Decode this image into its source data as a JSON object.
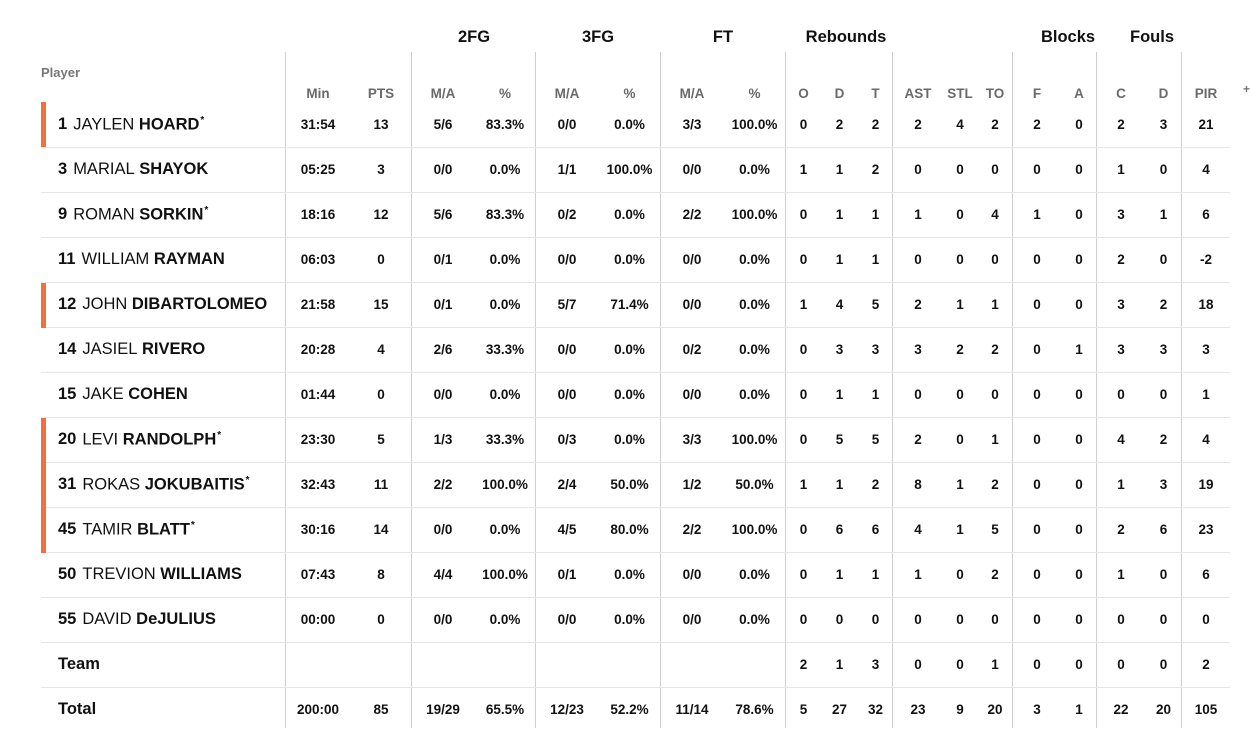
{
  "column_groups": [
    {
      "label": "2FG",
      "center": 474
    },
    {
      "label": "3FG",
      "center": 598
    },
    {
      "label": "FT",
      "center": 723
    },
    {
      "label": "Rebounds",
      "center": 846
    },
    {
      "label": "Blocks",
      "center": 1068
    },
    {
      "label": "Fouls",
      "center": 1152
    }
  ],
  "player_header": "Player",
  "more_indicator": "+",
  "columns": [
    "Min",
    "PTS",
    "M/A",
    "%",
    "M/A",
    "%",
    "M/A",
    "%",
    "O",
    "D",
    "T",
    "AST",
    "STL",
    "TO",
    "F",
    "A",
    "C",
    "D",
    "PIR"
  ],
  "rows": [
    {
      "number": "1",
      "first": "JAYLEN",
      "last": "HOARD",
      "starter": true,
      "stats": [
        "31:54",
        "13",
        "5/6",
        "83.3%",
        "0/0",
        "0.0%",
        "3/3",
        "100.0%",
        "0",
        "2",
        "2",
        "2",
        "4",
        "2",
        "2",
        "0",
        "2",
        "3",
        "21"
      ]
    },
    {
      "number": "3",
      "first": "MARIAL",
      "last": "SHAYOK",
      "starter": false,
      "stats": [
        "05:25",
        "3",
        "0/0",
        "0.0%",
        "1/1",
        "100.0%",
        "0/0",
        "0.0%",
        "1",
        "1",
        "2",
        "0",
        "0",
        "0",
        "0",
        "0",
        "1",
        "0",
        "4"
      ]
    },
    {
      "number": "9",
      "first": "ROMAN",
      "last": "SORKIN",
      "starter": false,
      "star": true,
      "stats": [
        "18:16",
        "12",
        "5/6",
        "83.3%",
        "0/2",
        "0.0%",
        "2/2",
        "100.0%",
        "0",
        "1",
        "1",
        "1",
        "0",
        "4",
        "1",
        "0",
        "3",
        "1",
        "6"
      ]
    },
    {
      "number": "11",
      "first": "WILLIAM",
      "last": "RAYMAN",
      "starter": false,
      "stats": [
        "06:03",
        "0",
        "0/1",
        "0.0%",
        "0/0",
        "0.0%",
        "0/0",
        "0.0%",
        "0",
        "1",
        "1",
        "0",
        "0",
        "0",
        "0",
        "0",
        "2",
        "0",
        "-2"
      ]
    },
    {
      "number": "12",
      "first": "JOHN",
      "last": "DIBARTOLOMEO",
      "starter": true,
      "nostar": true,
      "stats": [
        "21:58",
        "15",
        "0/1",
        "0.0%",
        "5/7",
        "71.4%",
        "0/0",
        "0.0%",
        "1",
        "4",
        "5",
        "2",
        "1",
        "1",
        "0",
        "0",
        "3",
        "2",
        "18"
      ]
    },
    {
      "number": "14",
      "first": "JASIEL",
      "last": "RIVERO",
      "starter": false,
      "stats": [
        "20:28",
        "4",
        "2/6",
        "33.3%",
        "0/0",
        "0.0%",
        "0/2",
        "0.0%",
        "0",
        "3",
        "3",
        "3",
        "2",
        "2",
        "0",
        "1",
        "3",
        "3",
        "3"
      ]
    },
    {
      "number": "15",
      "first": "JAKE",
      "last": "COHEN",
      "starter": false,
      "stats": [
        "01:44",
        "0",
        "0/0",
        "0.0%",
        "0/0",
        "0.0%",
        "0/0",
        "0.0%",
        "0",
        "1",
        "1",
        "0",
        "0",
        "0",
        "0",
        "0",
        "0",
        "0",
        "1"
      ]
    },
    {
      "number": "20",
      "first": "LEVI",
      "last": "RANDOLPH",
      "starter": true,
      "stats": [
        "23:30",
        "5",
        "1/3",
        "33.3%",
        "0/3",
        "0.0%",
        "3/3",
        "100.0%",
        "0",
        "5",
        "5",
        "2",
        "0",
        "1",
        "0",
        "0",
        "4",
        "2",
        "4"
      ]
    },
    {
      "number": "31",
      "first": "ROKAS",
      "last": "JOKUBAITIS",
      "starter": true,
      "stats": [
        "32:43",
        "11",
        "2/2",
        "100.0%",
        "2/4",
        "50.0%",
        "1/2",
        "50.0%",
        "1",
        "1",
        "2",
        "8",
        "1",
        "2",
        "0",
        "0",
        "1",
        "3",
        "19"
      ]
    },
    {
      "number": "45",
      "first": "TAMIR",
      "last": "BLATT",
      "starter": true,
      "stats": [
        "30:16",
        "14",
        "0/0",
        "0.0%",
        "4/5",
        "80.0%",
        "2/2",
        "100.0%",
        "0",
        "6",
        "6",
        "4",
        "1",
        "5",
        "0",
        "0",
        "2",
        "6",
        "23"
      ]
    },
    {
      "number": "50",
      "first": "TREVION",
      "last": "WILLIAMS",
      "starter": false,
      "stats": [
        "07:43",
        "8",
        "4/4",
        "100.0%",
        "0/1",
        "0.0%",
        "0/0",
        "0.0%",
        "0",
        "1",
        "1",
        "1",
        "0",
        "2",
        "0",
        "0",
        "1",
        "0",
        "6"
      ]
    },
    {
      "number": "55",
      "first": "DAVID",
      "last": "DeJULIUS",
      "starter": false,
      "stats": [
        "00:00",
        "0",
        "0/0",
        "0.0%",
        "0/0",
        "0.0%",
        "0/0",
        "0.0%",
        "0",
        "0",
        "0",
        "0",
        "0",
        "0",
        "0",
        "0",
        "0",
        "0",
        "0"
      ]
    }
  ],
  "team_row": {
    "label": "Team",
    "stats": [
      "",
      "",
      "",
      "",
      "",
      "",
      "",
      "",
      "2",
      "1",
      "3",
      "0",
      "0",
      "1",
      "0",
      "0",
      "0",
      "0",
      "2"
    ]
  },
  "total_row": {
    "label": "Total",
    "stats": [
      "200:00",
      "85",
      "19/29",
      "65.5%",
      "12/23",
      "52.2%",
      "11/14",
      "78.6%",
      "5",
      "27",
      "32",
      "23",
      "9",
      "20",
      "3",
      "1",
      "22",
      "20",
      "105"
    ]
  },
  "colors": {
    "starter_bar": "#f2703d",
    "divider": "#cfcfcf",
    "row_border": "#e6e6e6"
  }
}
